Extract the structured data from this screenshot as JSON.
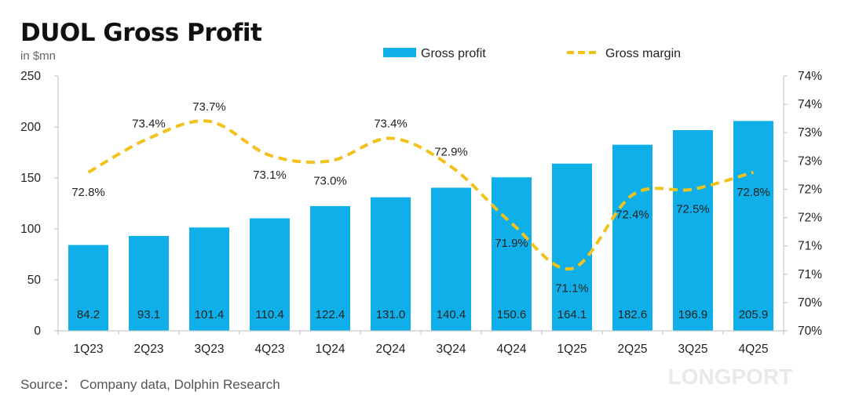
{
  "title": "DUOL Gross Profit",
  "unit_label": "in $mn",
  "source": "Source： Company data, Dolphin Research",
  "watermark": "LONGPORT",
  "colors": {
    "bar": "#0fb0ea",
    "line": "#f1c21b",
    "axis": "#bfbfbf",
    "text": "#222222"
  },
  "chart_data": {
    "type": "bar",
    "title": "DUOL Gross Profit",
    "categories": [
      "1Q23",
      "2Q23",
      "3Q23",
      "4Q23",
      "1Q24",
      "2Q24",
      "3Q24",
      "4Q24",
      "1Q25",
      "2Q25",
      "3Q25",
      "4Q25"
    ],
    "series": [
      {
        "name": "Gross profit",
        "type": "bar",
        "axis": "left",
        "values": [
          84.2,
          93.1,
          101.4,
          110.4,
          122.4,
          131.0,
          140.4,
          150.6,
          164.1,
          182.6,
          196.9,
          205.9
        ],
        "labels": [
          "84.2",
          "93.1",
          "101.4",
          "110.4",
          "122.4",
          "131.0",
          "140.4",
          "150.6",
          "164.1",
          "182.6",
          "196.9",
          "205.9"
        ]
      },
      {
        "name": "Gross margin",
        "type": "line",
        "style": "dashed",
        "axis": "right",
        "values": [
          72.8,
          73.4,
          73.7,
          73.1,
          73.0,
          73.4,
          72.9,
          71.9,
          71.1,
          72.4,
          72.5,
          72.8
        ],
        "labels": [
          "72.8%",
          "73.4%",
          "73.7%",
          "73.1%",
          "73.0%",
          "73.4%",
          "72.9%",
          "71.9%",
          "71.1%",
          "72.4%",
          "72.5%",
          "72.8%"
        ]
      }
    ],
    "y_left": {
      "ylim": [
        0,
        250
      ],
      "ticks": [
        "0",
        "50",
        "100",
        "150",
        "200",
        "250"
      ]
    },
    "y_right": {
      "ylim": [
        70.0,
        74.5
      ],
      "ticks": [
        "70%",
        "70%",
        "71%",
        "71%",
        "72%",
        "72%",
        "73%",
        "73%",
        "74%",
        "74%"
      ]
    },
    "legend": {
      "placement": "top-right",
      "entries": [
        "Gross profit",
        "Gross margin"
      ]
    },
    "grid": false
  }
}
